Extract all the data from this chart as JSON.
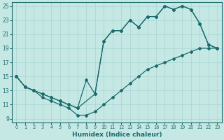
{
  "xlabel": "Humidex (Indice chaleur)",
  "xlim": [
    -0.5,
    23.5
  ],
  "ylim": [
    8.5,
    25.5
  ],
  "xticks": [
    0,
    1,
    2,
    3,
    4,
    5,
    6,
    7,
    8,
    9,
    10,
    11,
    12,
    13,
    14,
    15,
    16,
    17,
    18,
    19,
    20,
    21,
    22,
    23
  ],
  "yticks": [
    9,
    11,
    13,
    15,
    17,
    19,
    21,
    23,
    25
  ],
  "bg_color": "#c5e8e5",
  "line_color": "#1a6b6b",
  "grid_color": "#a8d4d0",
  "line1_x": [
    0,
    1,
    2,
    3,
    4,
    5,
    6,
    7,
    8,
    9,
    10,
    11,
    12,
    13,
    14,
    15,
    16,
    17,
    18,
    19,
    20,
    21,
    22,
    23
  ],
  "line1_y": [
    15,
    13.5,
    13,
    12,
    11.5,
    11,
    10.5,
    9.5,
    9.5,
    10,
    11,
    12,
    13,
    14,
    15,
    16,
    16.5,
    17,
    17.5,
    18,
    18.5,
    19,
    19,
    19
  ],
  "line2_x": [
    0,
    1,
    2,
    3,
    4,
    5,
    6,
    7,
    8,
    9,
    10,
    11,
    12,
    13,
    14,
    15,
    16,
    17,
    18,
    19,
    20,
    21,
    22,
    23
  ],
  "line2_y": [
    15,
    13.5,
    13,
    12.5,
    12,
    11.5,
    11,
    10.5,
    14.5,
    12.5,
    20,
    21.5,
    21.5,
    23,
    22,
    23.5,
    23.5,
    25,
    24.5,
    25,
    24.5,
    22.5,
    19.5,
    19
  ],
  "line3_x": [
    0,
    1,
    2,
    3,
    4,
    5,
    6,
    7,
    9,
    10,
    11,
    12,
    13,
    14,
    15,
    16,
    17,
    18,
    19,
    20,
    21,
    22,
    23
  ],
  "line3_y": [
    15,
    13.5,
    13,
    12.5,
    12,
    11.5,
    11,
    10.5,
    12.5,
    20,
    21.5,
    21.5,
    23,
    22,
    23.5,
    23.5,
    25,
    24.5,
    25,
    24.5,
    22.5,
    19.5,
    19
  ]
}
